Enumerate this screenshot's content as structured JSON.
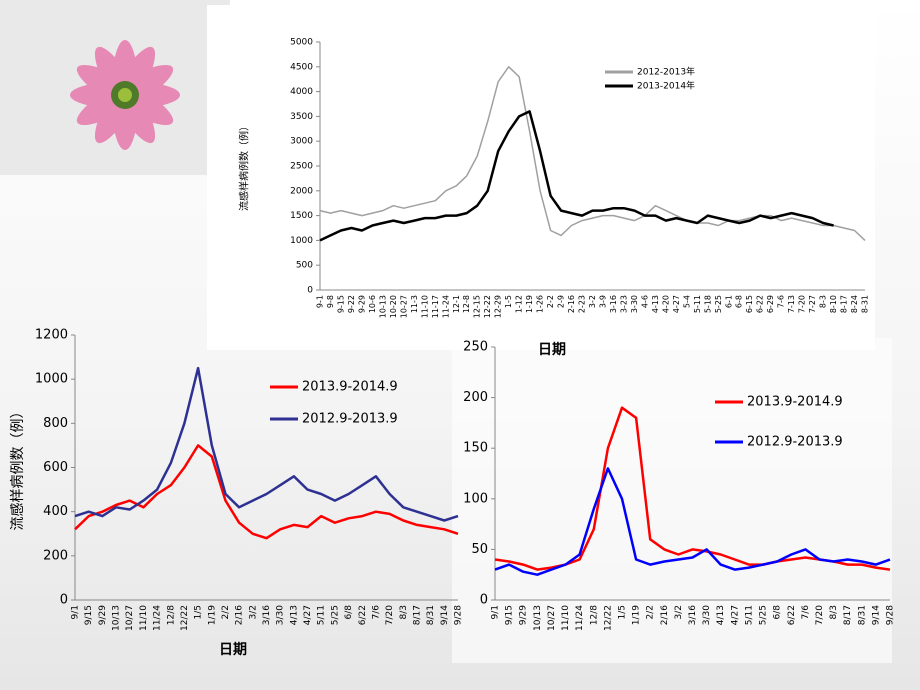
{
  "chart_data": [
    {
      "type": "line",
      "ylabel": "流感样病例数（例）",
      "xlabel": "日期",
      "legend": "upper right",
      "categories": [
        "9-1",
        "9-8",
        "9-15",
        "9-22",
        "9-29",
        "10-6",
        "10-13",
        "10-20",
        "10-27",
        "11-3",
        "11-10",
        "11-17",
        "11-24",
        "12-1",
        "12-8",
        "12-15",
        "12-22",
        "12-29",
        "1-5",
        "1-12",
        "1-19",
        "1-26",
        "2-2",
        "2-9",
        "2-16",
        "2-23",
        "3-2",
        "3-9",
        "3-16",
        "3-23",
        "3-30",
        "4-6",
        "4-13",
        "4-20",
        "4-27",
        "5-4",
        "5-11",
        "5-18",
        "5-25",
        "6-1",
        "6-8",
        "6-15",
        "6-22",
        "6-29",
        "7-6",
        "7-13",
        "7-20",
        "7-27",
        "8-3",
        "8-10",
        "8-17",
        "8-24",
        "8-31"
      ],
      "series": [
        {
          "name": "2012-2013年",
          "color": "#a0a0a0",
          "values": [
            1600,
            1550,
            1600,
            1550,
            1500,
            1550,
            1600,
            1700,
            1650,
            1700,
            1750,
            1800,
            2000,
            2100,
            2300,
            2700,
            3400,
            4200,
            4500,
            4300,
            3200,
            2000,
            1200,
            1100,
            1300,
            1400,
            1450,
            1500,
            1500,
            1450,
            1400,
            1500,
            1700,
            1600,
            1500,
            1400,
            1350,
            1350,
            1300,
            1400,
            1400,
            1450,
            1500,
            1500,
            1400,
            1450,
            1400,
            1350,
            1300,
            1300,
            1250,
            1200,
            1000
          ]
        },
        {
          "name": "2013-2014年",
          "color": "#000000",
          "values": [
            1000,
            1100,
            1200,
            1250,
            1200,
            1300,
            1350,
            1400,
            1350,
            1400,
            1450,
            1450,
            1500,
            1500,
            1550,
            1700,
            2000,
            2800,
            3200,
            3500,
            3600,
            2800,
            1900,
            1600,
            1550,
            1500,
            1600,
            1600,
            1650,
            1650,
            1600,
            1500,
            1500,
            1400,
            1450,
            1400,
            1350,
            1500,
            1450,
            1400,
            1350,
            1400,
            1500,
            1450,
            1500,
            1550,
            1500,
            1450,
            1350,
            1300,
            null,
            null,
            null
          ]
        }
      ],
      "ylim": [
        0,
        5000
      ],
      "yticks": [
        0,
        500,
        1000,
        1500,
        2000,
        2500,
        3000,
        3500,
        4000,
        4500,
        5000
      ]
    },
    {
      "type": "line",
      "ylabel": "流感样病例数（例）",
      "xlabel": "日期",
      "legend": "upper right",
      "categories": [
        "9/1",
        "9/15",
        "9/29",
        "10/13",
        "10/27",
        "11/10",
        "11/24",
        "12/8",
        "12/22",
        "1/5",
        "1/19",
        "2/2",
        "2/16",
        "3/2",
        "3/16",
        "3/30",
        "4/13",
        "4/27",
        "5/11",
        "5/25",
        "6/8",
        "6/22",
        "7/6",
        "7/20",
        "8/3",
        "8/17",
        "8/31",
        "9/14",
        "9/28"
      ],
      "series": [
        {
          "name": "2013.9-2014.9",
          "color": "#ff0000",
          "values": [
            320,
            380,
            400,
            430,
            450,
            420,
            480,
            520,
            600,
            700,
            650,
            450,
            350,
            300,
            280,
            320,
            340,
            330,
            380,
            350,
            370,
            380,
            400,
            390,
            360,
            340,
            330,
            320,
            300
          ]
        },
        {
          "name": "2012.9-2013.9",
          "color": "#2e3192",
          "values": [
            380,
            400,
            380,
            420,
            410,
            450,
            500,
            620,
            800,
            1050,
            700,
            480,
            420,
            450,
            480,
            520,
            560,
            500,
            480,
            450,
            480,
            520,
            560,
            480,
            420,
            400,
            380,
            360,
            380
          ]
        }
      ],
      "ylim": [
        0,
        1200
      ],
      "yticks": [
        0,
        200,
        400,
        600,
        800,
        1000,
        1200
      ]
    },
    {
      "type": "line",
      "legend": "upper right",
      "categories": [
        "9/1",
        "9/15",
        "9/29",
        "10/13",
        "10/27",
        "11/10",
        "11/24",
        "12/8",
        "12/22",
        "1/5",
        "1/19",
        "2/2",
        "2/16",
        "3/2",
        "3/16",
        "3/30",
        "4/13",
        "4/27",
        "5/11",
        "5/25",
        "6/8",
        "6/22",
        "7/6",
        "7/20",
        "8/3",
        "8/17",
        "8/31",
        "9/14",
        "9/28"
      ],
      "series": [
        {
          "name": "2013.9-2014.9",
          "color": "#ff0000",
          "values": [
            40,
            38,
            35,
            30,
            32,
            35,
            40,
            70,
            150,
            190,
            180,
            60,
            50,
            45,
            50,
            48,
            45,
            40,
            35,
            35,
            38,
            40,
            42,
            40,
            38,
            35,
            35,
            32,
            30
          ]
        },
        {
          "name": "2012.9-2013.9",
          "color": "#0000ff",
          "values": [
            30,
            35,
            28,
            25,
            30,
            35,
            45,
            90,
            130,
            100,
            40,
            35,
            38,
            40,
            42,
            50,
            35,
            30,
            32,
            35,
            38,
            45,
            50,
            40,
            38,
            40,
            38,
            35,
            40
          ]
        }
      ],
      "ylim": [
        0,
        250
      ],
      "yticks": [
        0,
        50,
        100,
        150,
        200,
        250
      ]
    }
  ]
}
